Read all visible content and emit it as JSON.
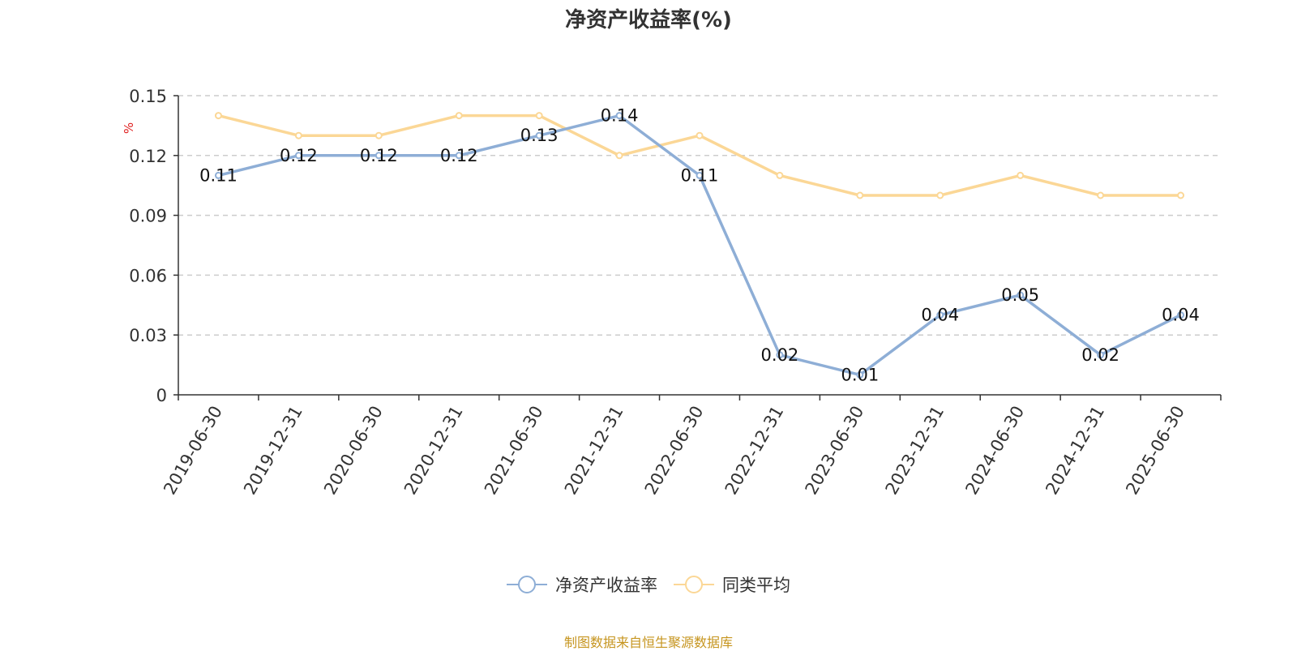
{
  "chart_data": {
    "type": "line",
    "title": "净资产收益率(%)",
    "ylabel": "%",
    "xlabel": "",
    "categories": [
      "2019-06-30",
      "2019-12-31",
      "2020-06-30",
      "2020-12-31",
      "2021-06-30",
      "2021-12-31",
      "2022-06-30",
      "2022-12-31",
      "2023-06-30",
      "2023-12-31",
      "2024-06-30",
      "2024-12-31",
      "2025-06-30"
    ],
    "ylim": [
      0,
      0.15
    ],
    "yticks": [
      0,
      0.03,
      0.06,
      0.09,
      0.12,
      0.15
    ],
    "ytick_labels": [
      "0",
      "0.03",
      "0.06",
      "0.09",
      "0.12",
      "0.15"
    ],
    "grid": "horizontal-dashed",
    "legend_position": "bottom",
    "series": [
      {
        "name": "净资产收益率",
        "color": "#8eaed6",
        "values": [
          0.11,
          0.12,
          0.12,
          0.12,
          0.13,
          0.14,
          0.11,
          0.02,
          0.01,
          0.04,
          0.05,
          0.02,
          0.04
        ],
        "data_labels": [
          "0.11",
          "0.12",
          "0.12",
          "0.12",
          "0.13",
          "0.14",
          "0.11",
          "0.02",
          "0.01",
          "0.04",
          "0.05",
          "0.02",
          "0.04"
        ]
      },
      {
        "name": "同类平均",
        "color": "#fbd796",
        "values": [
          0.14,
          0.13,
          0.13,
          0.14,
          0.14,
          0.12,
          0.13,
          0.11,
          0.1,
          0.1,
          0.11,
          0.1,
          0.1
        ]
      }
    ]
  },
  "source_note": "制图数据来自恒生聚源数据库",
  "colors": {
    "axis": "#333333",
    "grid": "#cccccc",
    "ylabel": "#e02020",
    "source": "#c6951f"
  }
}
